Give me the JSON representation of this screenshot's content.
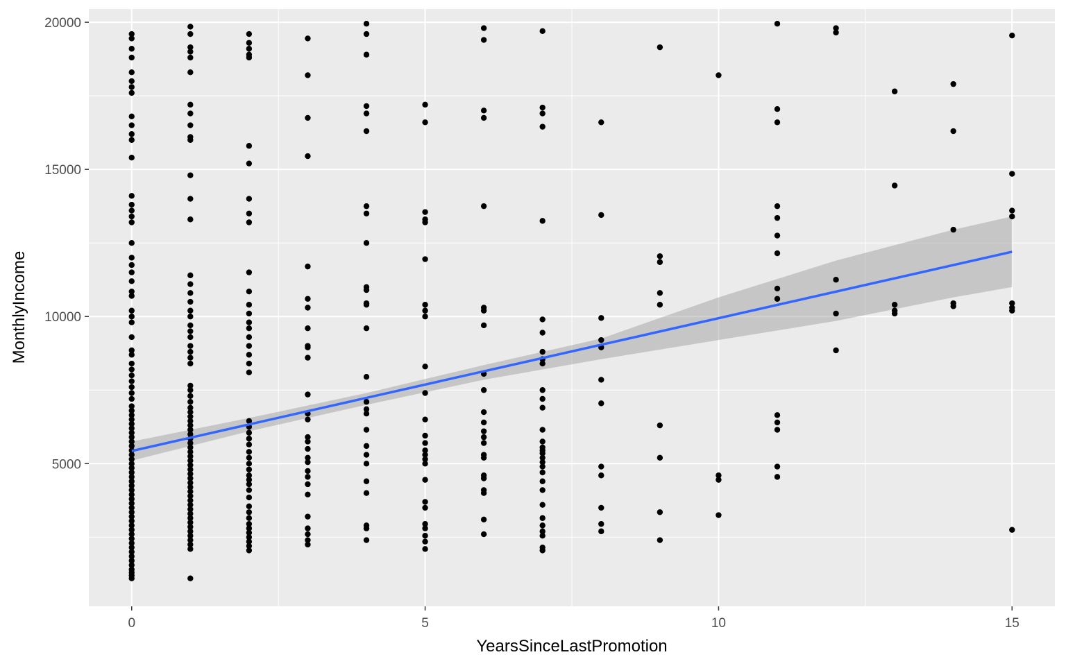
{
  "chart_data": {
    "type": "scatter",
    "xlabel": "YearsSinceLastPromotion",
    "ylabel": "MonthlyIncome",
    "xlim": [
      -0.73,
      15.73
    ],
    "ylim": [
      150,
      20450
    ],
    "x_ticks": [
      0,
      5,
      10,
      15
    ],
    "x_tick_labels": [
      "0",
      "5",
      "10",
      "15"
    ],
    "y_ticks": [
      5000,
      10000,
      15000,
      20000
    ],
    "y_tick_labels": [
      "5000",
      "10000",
      "15000",
      "20000"
    ],
    "x_minor_ticks": [
      2.5,
      7.5,
      12.5
    ],
    "y_minor_ticks": [
      2500,
      7500,
      12500,
      17500
    ],
    "grid": true,
    "legend": "none",
    "colors": {
      "panel_background": "#ebebeb",
      "grid_line": "#ffffff",
      "point": "#000000",
      "fit_line": "#3366ff",
      "confidence_band": "#c0c0c0"
    },
    "points": [
      [
        0,
        1100
      ],
      [
        0,
        1200
      ],
      [
        0,
        1300
      ],
      [
        0,
        1400
      ],
      [
        0,
        1550
      ],
      [
        0,
        1700
      ],
      [
        0,
        1850
      ],
      [
        0,
        2000
      ],
      [
        0,
        2150
      ],
      [
        0,
        2300
      ],
      [
        0,
        2450
      ],
      [
        0,
        2600
      ],
      [
        0,
        2750
      ],
      [
        0,
        2900
      ],
      [
        0,
        3050
      ],
      [
        0,
        3200
      ],
      [
        0,
        3350
      ],
      [
        0,
        3500
      ],
      [
        0,
        3650
      ],
      [
        0,
        3800
      ],
      [
        0,
        3950
      ],
      [
        0,
        4100
      ],
      [
        0,
        4250
      ],
      [
        0,
        4400
      ],
      [
        0,
        4550
      ],
      [
        0,
        4700
      ],
      [
        0,
        4850
      ],
      [
        0,
        5000
      ],
      [
        0,
        5150
      ],
      [
        0,
        5300
      ],
      [
        0,
        5450
      ],
      [
        0,
        5600
      ],
      [
        0,
        5750
      ],
      [
        0,
        5900
      ],
      [
        0,
        6050
      ],
      [
        0,
        6200
      ],
      [
        0,
        6350
      ],
      [
        0,
        6500
      ],
      [
        0,
        6650
      ],
      [
        0,
        6800
      ],
      [
        0,
        6950
      ],
      [
        0,
        7200
      ],
      [
        0,
        7400
      ],
      [
        0,
        7600
      ],
      [
        0,
        7800
      ],
      [
        0,
        8000
      ],
      [
        0,
        8200
      ],
      [
        0,
        8400
      ],
      [
        0,
        8700
      ],
      [
        0,
        8850
      ],
      [
        0,
        9300
      ],
      [
        0,
        9800
      ],
      [
        0,
        10000
      ],
      [
        0,
        10200
      ],
      [
        0,
        10700
      ],
      [
        0,
        10850
      ],
      [
        0,
        11200
      ],
      [
        0,
        11500
      ],
      [
        0,
        11750
      ],
      [
        0,
        12000
      ],
      [
        0,
        12500
      ],
      [
        0,
        13200
      ],
      [
        0,
        13400
      ],
      [
        0,
        13600
      ],
      [
        0,
        13800
      ],
      [
        0,
        14100
      ],
      [
        0,
        15400
      ],
      [
        0,
        16000
      ],
      [
        0,
        16200
      ],
      [
        0,
        16500
      ],
      [
        0,
        16800
      ],
      [
        0,
        17600
      ],
      [
        0,
        17800
      ],
      [
        0,
        18000
      ],
      [
        0,
        18300
      ],
      [
        0,
        18800
      ],
      [
        0,
        19100
      ],
      [
        0,
        19450
      ],
      [
        0,
        19600
      ],
      [
        1,
        1100
      ],
      [
        1,
        2100
      ],
      [
        1,
        2250
      ],
      [
        1,
        2400
      ],
      [
        1,
        2550
      ],
      [
        1,
        2700
      ],
      [
        1,
        2850
      ],
      [
        1,
        3000
      ],
      [
        1,
        3150
      ],
      [
        1,
        3300
      ],
      [
        1,
        3450
      ],
      [
        1,
        3600
      ],
      [
        1,
        3750
      ],
      [
        1,
        3900
      ],
      [
        1,
        4050
      ],
      [
        1,
        4200
      ],
      [
        1,
        4350
      ],
      [
        1,
        4500
      ],
      [
        1,
        4650
      ],
      [
        1,
        4800
      ],
      [
        1,
        4950
      ],
      [
        1,
        5100
      ],
      [
        1,
        5250
      ],
      [
        1,
        5400
      ],
      [
        1,
        5550
      ],
      [
        1,
        5700
      ],
      [
        1,
        5850
      ],
      [
        1,
        6000
      ],
      [
        1,
        6150
      ],
      [
        1,
        6300
      ],
      [
        1,
        6450
      ],
      [
        1,
        6600
      ],
      [
        1,
        6750
      ],
      [
        1,
        6900
      ],
      [
        1,
        7100
      ],
      [
        1,
        7300
      ],
      [
        1,
        7500
      ],
      [
        1,
        7650
      ],
      [
        1,
        8400
      ],
      [
        1,
        8600
      ],
      [
        1,
        8800
      ],
      [
        1,
        9000
      ],
      [
        1,
        9300
      ],
      [
        1,
        9500
      ],
      [
        1,
        9700
      ],
      [
        1,
        10000
      ],
      [
        1,
        10200
      ],
      [
        1,
        10500
      ],
      [
        1,
        10800
      ],
      [
        1,
        11100
      ],
      [
        1,
        11400
      ],
      [
        1,
        13300
      ],
      [
        1,
        14000
      ],
      [
        1,
        14800
      ],
      [
        1,
        16000
      ],
      [
        1,
        16100
      ],
      [
        1,
        16500
      ],
      [
        1,
        16900
      ],
      [
        1,
        17200
      ],
      [
        1,
        18300
      ],
      [
        1,
        18800
      ],
      [
        1,
        19000
      ],
      [
        1,
        19150
      ],
      [
        1,
        19600
      ],
      [
        1,
        19850
      ],
      [
        2,
        2050
      ],
      [
        2,
        2200
      ],
      [
        2,
        2350
      ],
      [
        2,
        2500
      ],
      [
        2,
        2650
      ],
      [
        2,
        2800
      ],
      [
        2,
        2950
      ],
      [
        2,
        3150
      ],
      [
        2,
        3350
      ],
      [
        2,
        3550
      ],
      [
        2,
        3850
      ],
      [
        2,
        4100
      ],
      [
        2,
        4300
      ],
      [
        2,
        4450
      ],
      [
        2,
        4600
      ],
      [
        2,
        4800
      ],
      [
        2,
        5000
      ],
      [
        2,
        5200
      ],
      [
        2,
        5400
      ],
      [
        2,
        5650
      ],
      [
        2,
        5850
      ],
      [
        2,
        6050
      ],
      [
        2,
        6250
      ],
      [
        2,
        6450
      ],
      [
        2,
        8100
      ],
      [
        2,
        8400
      ],
      [
        2,
        8700
      ],
      [
        2,
        9000
      ],
      [
        2,
        9300
      ],
      [
        2,
        9600
      ],
      [
        2,
        9800
      ],
      [
        2,
        10100
      ],
      [
        2,
        10400
      ],
      [
        2,
        10850
      ],
      [
        2,
        11500
      ],
      [
        2,
        13200
      ],
      [
        2,
        13500
      ],
      [
        2,
        14000
      ],
      [
        2,
        15200
      ],
      [
        2,
        15800
      ],
      [
        2,
        18800
      ],
      [
        2,
        18900
      ],
      [
        2,
        19100
      ],
      [
        2,
        19300
      ],
      [
        2,
        19600
      ],
      [
        3,
        2250
      ],
      [
        3,
        2400
      ],
      [
        3,
        2600
      ],
      [
        3,
        2800
      ],
      [
        3,
        3200
      ],
      [
        3,
        3950
      ],
      [
        3,
        4300
      ],
      [
        3,
        4550
      ],
      [
        3,
        4750
      ],
      [
        3,
        5050
      ],
      [
        3,
        5200
      ],
      [
        3,
        5500
      ],
      [
        3,
        5750
      ],
      [
        3,
        5900
      ],
      [
        3,
        6500
      ],
      [
        3,
        6700
      ],
      [
        3,
        7350
      ],
      [
        3,
        8600
      ],
      [
        3,
        8950
      ],
      [
        3,
        9000
      ],
      [
        3,
        9600
      ],
      [
        3,
        10300
      ],
      [
        3,
        10600
      ],
      [
        3,
        11700
      ],
      [
        3,
        15450
      ],
      [
        3,
        16750
      ],
      [
        3,
        18200
      ],
      [
        3,
        19450
      ],
      [
        4,
        2400
      ],
      [
        4,
        2800
      ],
      [
        4,
        2900
      ],
      [
        4,
        4000
      ],
      [
        4,
        4400
      ],
      [
        4,
        5000
      ],
      [
        4,
        5300
      ],
      [
        4,
        5600
      ],
      [
        4,
        6150
      ],
      [
        4,
        6700
      ],
      [
        4,
        6850
      ],
      [
        4,
        7100
      ],
      [
        4,
        7950
      ],
      [
        4,
        9600
      ],
      [
        4,
        10400
      ],
      [
        4,
        10450
      ],
      [
        4,
        10900
      ],
      [
        4,
        11000
      ],
      [
        4,
        12500
      ],
      [
        4,
        13500
      ],
      [
        4,
        13750
      ],
      [
        4,
        16300
      ],
      [
        4,
        16900
      ],
      [
        4,
        17150
      ],
      [
        4,
        18900
      ],
      [
        4,
        19600
      ],
      [
        4,
        19950
      ],
      [
        5,
        2100
      ],
      [
        5,
        2350
      ],
      [
        5,
        2550
      ],
      [
        5,
        2800
      ],
      [
        5,
        2950
      ],
      [
        5,
        3500
      ],
      [
        5,
        3700
      ],
      [
        5,
        4450
      ],
      [
        5,
        5000
      ],
      [
        5,
        5150
      ],
      [
        5,
        5300
      ],
      [
        5,
        5450
      ],
      [
        5,
        5700
      ],
      [
        5,
        5950
      ],
      [
        5,
        6500
      ],
      [
        5,
        7400
      ],
      [
        5,
        8300
      ],
      [
        5,
        10000
      ],
      [
        5,
        10200
      ],
      [
        5,
        10400
      ],
      [
        5,
        11950
      ],
      [
        5,
        13200
      ],
      [
        5,
        13300
      ],
      [
        5,
        13550
      ],
      [
        5,
        16600
      ],
      [
        5,
        17200
      ],
      [
        6,
        2600
      ],
      [
        6,
        3100
      ],
      [
        6,
        4000
      ],
      [
        6,
        4100
      ],
      [
        6,
        4500
      ],
      [
        6,
        4600
      ],
      [
        6,
        5200
      ],
      [
        6,
        5300
      ],
      [
        6,
        5700
      ],
      [
        6,
        5900
      ],
      [
        6,
        6100
      ],
      [
        6,
        6400
      ],
      [
        6,
        6750
      ],
      [
        6,
        7500
      ],
      [
        6,
        8050
      ],
      [
        6,
        9700
      ],
      [
        6,
        10200
      ],
      [
        6,
        10300
      ],
      [
        6,
        13750
      ],
      [
        6,
        16750
      ],
      [
        6,
        17000
      ],
      [
        6,
        19400
      ],
      [
        6,
        19800
      ],
      [
        7,
        2050
      ],
      [
        7,
        2150
      ],
      [
        7,
        2550
      ],
      [
        7,
        2700
      ],
      [
        7,
        2900
      ],
      [
        7,
        3150
      ],
      [
        7,
        3600
      ],
      [
        7,
        4100
      ],
      [
        7,
        4400
      ],
      [
        7,
        4700
      ],
      [
        7,
        4900
      ],
      [
        7,
        5050
      ],
      [
        7,
        5200
      ],
      [
        7,
        5350
      ],
      [
        7,
        5450
      ],
      [
        7,
        5550
      ],
      [
        7,
        5750
      ],
      [
        7,
        6150
      ],
      [
        7,
        6900
      ],
      [
        7,
        7200
      ],
      [
        7,
        7500
      ],
      [
        7,
        8400
      ],
      [
        7,
        8550
      ],
      [
        7,
        8800
      ],
      [
        7,
        9450
      ],
      [
        7,
        9900
      ],
      [
        7,
        13250
      ],
      [
        7,
        16450
      ],
      [
        7,
        16900
      ],
      [
        7,
        17100
      ],
      [
        7,
        19700
      ],
      [
        8,
        2700
      ],
      [
        8,
        2950
      ],
      [
        8,
        3500
      ],
      [
        8,
        4600
      ],
      [
        8,
        4900
      ],
      [
        8,
        7050
      ],
      [
        8,
        7850
      ],
      [
        8,
        8950
      ],
      [
        8,
        9200
      ],
      [
        8,
        9950
      ],
      [
        8,
        13450
      ],
      [
        8,
        16600
      ],
      [
        9,
        2400
      ],
      [
        9,
        3350
      ],
      [
        9,
        5200
      ],
      [
        9,
        6300
      ],
      [
        9,
        10400
      ],
      [
        9,
        10800
      ],
      [
        9,
        11850
      ],
      [
        9,
        12050
      ],
      [
        9,
        19150
      ],
      [
        10,
        3250
      ],
      [
        10,
        4450
      ],
      [
        10,
        4600
      ],
      [
        10,
        18200
      ],
      [
        11,
        4550
      ],
      [
        11,
        4900
      ],
      [
        11,
        6150
      ],
      [
        11,
        6400
      ],
      [
        11,
        6650
      ],
      [
        11,
        10600
      ],
      [
        11,
        10950
      ],
      [
        11,
        12150
      ],
      [
        11,
        12750
      ],
      [
        11,
        13350
      ],
      [
        11,
        13750
      ],
      [
        11,
        16600
      ],
      [
        11,
        17050
      ],
      [
        11,
        19950
      ],
      [
        12,
        8850
      ],
      [
        12,
        10100
      ],
      [
        12,
        11250
      ],
      [
        12,
        19650
      ],
      [
        12,
        19800
      ],
      [
        13,
        10100
      ],
      [
        13,
        10200
      ],
      [
        13,
        10400
      ],
      [
        13,
        14450
      ],
      [
        13,
        17650
      ],
      [
        14,
        10350
      ],
      [
        14,
        10450
      ],
      [
        14,
        12950
      ],
      [
        14,
        16300
      ],
      [
        14,
        17900
      ],
      [
        15,
        2750
      ],
      [
        15,
        10200
      ],
      [
        15,
        10300
      ],
      [
        15,
        10450
      ],
      [
        15,
        13400
      ],
      [
        15,
        13600
      ],
      [
        15,
        14850
      ],
      [
        15,
        19550
      ]
    ],
    "fit_line": {
      "x": [
        0,
        15
      ],
      "y": [
        5430,
        12200
      ]
    },
    "confidence_band": {
      "x": [
        0,
        2,
        4,
        6,
        8,
        10,
        12,
        14,
        15
      ],
      "lower": [
        5100,
        6100,
        7000,
        7850,
        8550,
        9200,
        9850,
        10650,
        11000
      ],
      "upper": [
        5750,
        6550,
        7400,
        8350,
        9250,
        10650,
        11900,
        12950,
        13400
      ]
    }
  }
}
